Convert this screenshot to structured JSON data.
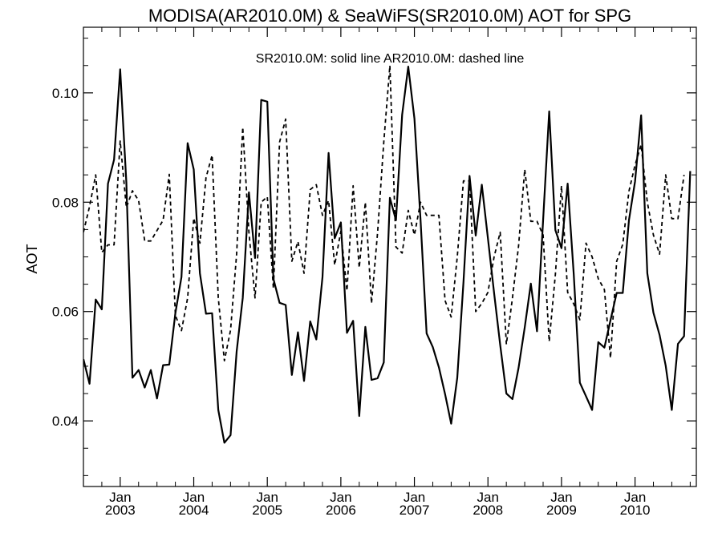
{
  "chart_data": {
    "type": "line",
    "title": "MODISA(AR2010.0M) & SeaWiFS(SR2010.0M)  AOT for SPG",
    "annotation": "SR2010.0M: solid line   AR2010.0M: dashed line",
    "xlabel": "",
    "ylabel": "AOT",
    "ylim": [
      0.028,
      0.112
    ],
    "yticks": [
      0.04,
      0.06,
      0.08,
      0.1
    ],
    "ytick_labels": [
      "0.04",
      "0.06",
      "0.08",
      "0.10"
    ],
    "xlim": [
      "2002-07-01",
      "2010-11-01"
    ],
    "xticks": [
      {
        "month": "Jan",
        "year": "2003"
      },
      {
        "month": "Jan",
        "year": "2004"
      },
      {
        "month": "Jan",
        "year": "2005"
      },
      {
        "month": "Jan",
        "year": "2006"
      },
      {
        "month": "Jan",
        "year": "2007"
      },
      {
        "month": "Jan",
        "year": "2008"
      },
      {
        "month": "Jan",
        "year": "2009"
      },
      {
        "month": "Jan",
        "year": "2010"
      }
    ],
    "grid": false,
    "series": [
      {
        "name": "SR2010.0M",
        "style": "solid",
        "color": "#000000",
        "points": [
          [
            "2002-07",
            0.0513
          ],
          [
            "2002-08",
            0.0468
          ],
          [
            "2002-09",
            0.0622
          ],
          [
            "2002-10",
            0.0604
          ],
          [
            "2002-11",
            0.0834
          ],
          [
            "2002-12",
            0.0878
          ],
          [
            "2003-01",
            0.1043
          ],
          [
            "2003-02",
            0.0836
          ],
          [
            "2003-03",
            0.0479
          ],
          [
            "2003-04",
            0.0493
          ],
          [
            "2003-05",
            0.0461
          ],
          [
            "2003-06",
            0.0493
          ],
          [
            "2003-07",
            0.0441
          ],
          [
            "2003-08",
            0.0502
          ],
          [
            "2003-09",
            0.0503
          ],
          [
            "2003-10",
            0.0597
          ],
          [
            "2003-11",
            0.0663
          ],
          [
            "2003-12",
            0.0908
          ],
          [
            "2004-01",
            0.086
          ],
          [
            "2004-02",
            0.067
          ],
          [
            "2004-03",
            0.0596
          ],
          [
            "2004-04",
            0.0597
          ],
          [
            "2004-05",
            0.042
          ],
          [
            "2004-06",
            0.036
          ],
          [
            "2004-07",
            0.0374
          ],
          [
            "2004-08",
            0.0527
          ],
          [
            "2004-09",
            0.0625
          ],
          [
            "2004-10",
            0.0818
          ],
          [
            "2004-11",
            0.0698
          ],
          [
            "2004-12",
            0.0987
          ],
          [
            "2005-01",
            0.0984
          ],
          [
            "2005-02",
            0.066
          ],
          [
            "2005-03",
            0.0616
          ],
          [
            "2005-04",
            0.0612
          ],
          [
            "2005-05",
            0.0484
          ],
          [
            "2005-06",
            0.0562
          ],
          [
            "2005-07",
            0.0473
          ],
          [
            "2005-08",
            0.0582
          ],
          [
            "2005-09",
            0.0549
          ],
          [
            "2005-10",
            0.0663
          ],
          [
            "2005-11",
            0.089
          ],
          [
            "2005-12",
            0.0734
          ],
          [
            "2006-01",
            0.0763
          ],
          [
            "2006-02",
            0.0561
          ],
          [
            "2006-03",
            0.0583
          ],
          [
            "2006-04",
            0.0409
          ],
          [
            "2006-05",
            0.0572
          ],
          [
            "2006-06",
            0.0475
          ],
          [
            "2006-07",
            0.0478
          ],
          [
            "2006-08",
            0.0507
          ],
          [
            "2006-09",
            0.0808
          ],
          [
            "2006-10",
            0.0767
          ],
          [
            "2006-11",
            0.096
          ],
          [
            "2006-12",
            0.1048
          ],
          [
            "2007-01",
            0.0953
          ],
          [
            "2007-02",
            0.0768
          ],
          [
            "2007-03",
            0.056
          ],
          [
            "2007-04",
            0.0535
          ],
          [
            "2007-05",
            0.0498
          ],
          [
            "2007-06",
            0.0449
          ],
          [
            "2007-07",
            0.0395
          ],
          [
            "2007-08",
            0.0479
          ],
          [
            "2007-09",
            0.0653
          ],
          [
            "2007-10",
            0.0848
          ],
          [
            "2007-11",
            0.0739
          ],
          [
            "2007-12",
            0.0832
          ],
          [
            "2008-01",
            0.0734
          ],
          [
            "2008-02",
            0.0634
          ],
          [
            "2008-03",
            0.0539
          ],
          [
            "2008-04",
            0.045
          ],
          [
            "2008-05",
            0.044
          ],
          [
            "2008-06",
            0.0497
          ],
          [
            "2008-07",
            0.0571
          ],
          [
            "2008-08",
            0.0651
          ],
          [
            "2008-09",
            0.0564
          ],
          [
            "2008-10",
            0.0767
          ],
          [
            "2008-11",
            0.0966
          ],
          [
            "2008-12",
            0.0749
          ],
          [
            "2009-01",
            0.0716
          ],
          [
            "2009-02",
            0.0834
          ],
          [
            "2009-03",
            0.0668
          ],
          [
            "2009-04",
            0.047
          ],
          [
            "2009-05",
            0.0445
          ],
          [
            "2009-06",
            0.042
          ],
          [
            "2009-07",
            0.0544
          ],
          [
            "2009-08",
            0.0534
          ],
          [
            "2009-09",
            0.0584
          ],
          [
            "2009-10",
            0.0634
          ],
          [
            "2009-11",
            0.0634
          ],
          [
            "2009-12",
            0.0767
          ],
          [
            "2010-01",
            0.0838
          ],
          [
            "2010-02",
            0.0959
          ],
          [
            "2010-03",
            0.067
          ],
          [
            "2010-04",
            0.0598
          ],
          [
            "2010-05",
            0.0557
          ],
          [
            "2010-06",
            0.0501
          ],
          [
            "2010-07",
            0.042
          ],
          [
            "2010-08",
            0.0541
          ],
          [
            "2010-09",
            0.0555
          ],
          [
            "2010-10",
            0.0857
          ]
        ]
      },
      {
        "name": "AR2010.0M",
        "style": "dashed",
        "color": "#000000",
        "points": [
          [
            "2002-07",
            0.0745
          ],
          [
            "2002-08",
            0.0792
          ],
          [
            "2002-09",
            0.085
          ],
          [
            "2002-10",
            0.0708
          ],
          [
            "2002-11",
            0.0722
          ],
          [
            "2002-12",
            0.0722
          ],
          [
            "2003-01",
            0.0912
          ],
          [
            "2003-02",
            0.079
          ],
          [
            "2003-03",
            0.0821
          ],
          [
            "2003-04",
            0.0803
          ],
          [
            "2003-05",
            0.0729
          ],
          [
            "2003-06",
            0.0729
          ],
          [
            "2003-08",
            0.0767
          ],
          [
            "2003-09",
            0.0851
          ],
          [
            "2003-10",
            0.0593
          ],
          [
            "2003-11",
            0.0565
          ],
          [
            "2003-12",
            0.0625
          ],
          [
            "2004-01",
            0.0771
          ],
          [
            "2004-02",
            0.0725
          ],
          [
            "2004-03",
            0.0845
          ],
          [
            "2004-04",
            0.0886
          ],
          [
            "2004-05",
            0.0625
          ],
          [
            "2004-06",
            0.051
          ],
          [
            "2004-07",
            0.0566
          ],
          [
            "2004-08",
            0.0706
          ],
          [
            "2004-09",
            0.0937
          ],
          [
            "2004-10",
            0.0745
          ],
          [
            "2004-11",
            0.0625
          ],
          [
            "2004-12",
            0.08
          ],
          [
            "2005-01",
            0.081
          ],
          [
            "2005-02",
            0.0642
          ],
          [
            "2005-03",
            0.091
          ],
          [
            "2005-04",
            0.0952
          ],
          [
            "2005-05",
            0.0692
          ],
          [
            "2005-06",
            0.0728
          ],
          [
            "2005-07",
            0.067
          ],
          [
            "2005-08",
            0.0823
          ],
          [
            "2005-09",
            0.0832
          ],
          [
            "2005-10",
            0.0776
          ],
          [
            "2005-11",
            0.0803
          ],
          [
            "2005-12",
            0.0685
          ],
          [
            "2006-01",
            0.0747
          ],
          [
            "2006-02",
            0.0638
          ],
          [
            "2006-03",
            0.083
          ],
          [
            "2006-04",
            0.068
          ],
          [
            "2006-05",
            0.08
          ],
          [
            "2006-06",
            0.0615
          ],
          [
            "2006-07",
            0.0745
          ],
          [
            "2006-08",
            0.091
          ],
          [
            "2006-09",
            0.105
          ],
          [
            "2006-10",
            0.0718
          ],
          [
            "2006-11",
            0.0707
          ],
          [
            "2006-12",
            0.0785
          ],
          [
            "2007-01",
            0.074
          ],
          [
            "2007-02",
            0.08
          ],
          [
            "2007-03",
            0.0776
          ],
          [
            "2007-04",
            0.0776
          ],
          [
            "2007-05",
            0.0776
          ],
          [
            "2007-06",
            0.062
          ],
          [
            "2007-07",
            0.059
          ],
          [
            "2007-08",
            0.07
          ],
          [
            "2007-09",
            0.0839
          ],
          [
            "2007-10",
            0.0839
          ],
          [
            "2007-11",
            0.06
          ],
          [
            "2007-12",
            0.0615
          ],
          [
            "2008-01",
            0.0635
          ],
          [
            "2008-02",
            0.07
          ],
          [
            "2008-03",
            0.0745
          ],
          [
            "2008-04",
            0.054
          ],
          [
            "2008-05",
            0.0625
          ],
          [
            "2008-06",
            0.072
          ],
          [
            "2008-07",
            0.086
          ],
          [
            "2008-08",
            0.0765
          ],
          [
            "2008-09",
            0.0765
          ],
          [
            "2008-10",
            0.074
          ],
          [
            "2008-11",
            0.0545
          ],
          [
            "2008-12",
            0.0668
          ],
          [
            "2009-01",
            0.083
          ],
          [
            "2009-02",
            0.0635
          ],
          [
            "2009-03",
            0.0614
          ],
          [
            "2009-04",
            0.0585
          ],
          [
            "2009-05",
            0.0725
          ],
          [
            "2009-06",
            0.07
          ],
          [
            "2009-07",
            0.066
          ],
          [
            "2009-08",
            0.064
          ],
          [
            "2009-09",
            0.0515
          ],
          [
            "2009-10",
            0.0692
          ],
          [
            "2009-11",
            0.0723
          ],
          [
            "2009-12",
            0.082
          ],
          [
            "2010-01",
            0.0868
          ],
          [
            "2010-02",
            0.0905
          ],
          [
            "2010-03",
            0.08
          ],
          [
            "2010-04",
            0.074
          ],
          [
            "2010-05",
            0.0705
          ],
          [
            "2010-06",
            0.085
          ],
          [
            "2010-07",
            0.077
          ],
          [
            "2010-08",
            0.077
          ],
          [
            "2010-09",
            0.085
          ]
        ]
      }
    ]
  }
}
